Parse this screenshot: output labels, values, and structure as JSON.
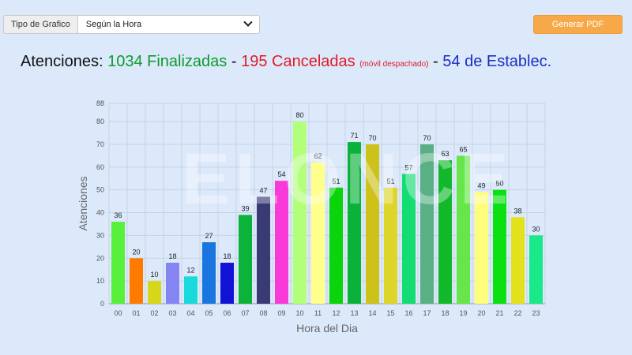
{
  "toolbar": {
    "type_label": "Tipo de Grafico",
    "type_value": "Según la Hora",
    "pdf_button": "Generar PDF"
  },
  "headline": {
    "prefix": "Atenciones:",
    "finalizadas": "1034 Finalizadas",
    "sep1": "-",
    "canceladas": "195 Canceladas",
    "canceladas_note": "(móvil despachado)",
    "sep2": "-",
    "establec": "54 de Establec."
  },
  "watermark": "ELONCE",
  "chart_data": {
    "type": "bar",
    "xlabel": "Hora del Dia",
    "ylabel": "Atenciones",
    "ylim": [
      0,
      88
    ],
    "yticks": [
      0,
      10,
      20,
      30,
      40,
      50,
      60,
      70,
      80,
      88
    ],
    "grid": true,
    "categories": [
      "00",
      "01",
      "02",
      "03",
      "04",
      "05",
      "06",
      "07",
      "08",
      "09",
      "10",
      "11",
      "12",
      "13",
      "14",
      "15",
      "16",
      "17",
      "18",
      "19",
      "20",
      "21",
      "22",
      "23"
    ],
    "values": [
      36,
      20,
      10,
      18,
      12,
      27,
      18,
      39,
      47,
      54,
      80,
      62,
      51,
      71,
      70,
      51,
      57,
      70,
      63,
      65,
      49,
      50,
      38,
      30
    ],
    "colors": [
      "#58f03a",
      "#ff7b00",
      "#d6d61a",
      "#8484f2",
      "#18dada",
      "#1976e0",
      "#1212d6",
      "#0cb33a",
      "#3a3a74",
      "#fa3ad8",
      "#b2ff7a",
      "#ffff8c",
      "#0ad40a",
      "#0ab23a",
      "#ccc21a",
      "#ddd52a",
      "#12dc72",
      "#58b084",
      "#12b82a",
      "#66e64a",
      "#ffff7a",
      "#0ae012",
      "#e2e21a",
      "#1ae88a"
    ]
  }
}
